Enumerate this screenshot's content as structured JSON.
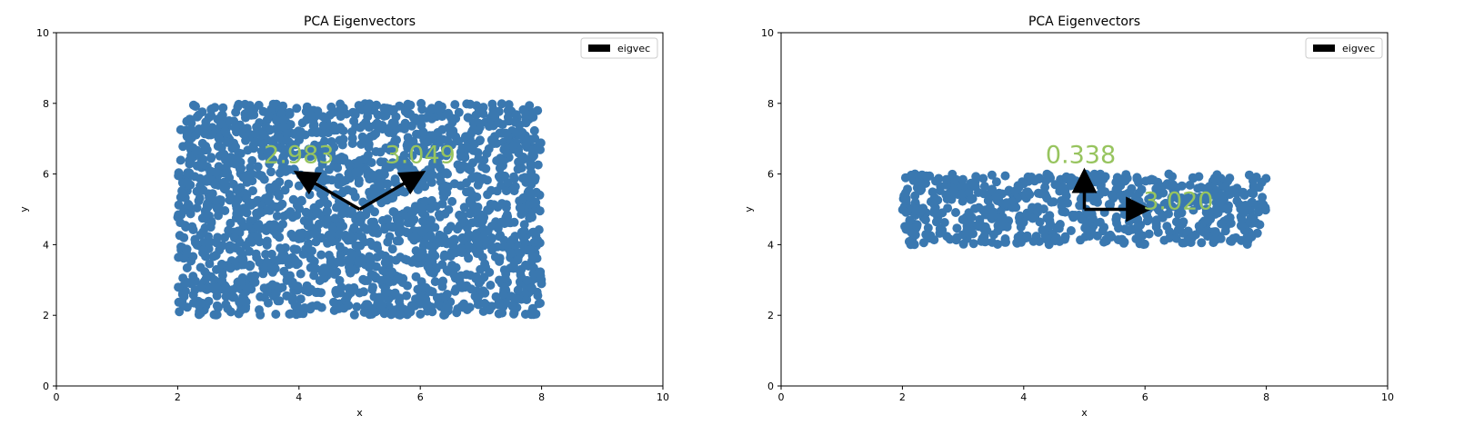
{
  "chart_data": [
    {
      "type": "scatter",
      "title": "PCA Eigenvectors",
      "xlabel": "x",
      "ylabel": "y",
      "xlim": [
        0,
        10
      ],
      "ylim": [
        0,
        10
      ],
      "xticks": [
        "0",
        "2",
        "4",
        "6",
        "8",
        "10"
      ],
      "yticks": [
        "0",
        "2",
        "4",
        "6",
        "8",
        "10"
      ],
      "grid": false,
      "legend": {
        "placement": "top-right",
        "entries": [
          "eigvec"
        ]
      },
      "scatter_region": {
        "x": [
          2,
          8
        ],
        "y": [
          2,
          8
        ],
        "color": "#3a78b0"
      },
      "eigenvectors": [
        {
          "origin": [
            5,
            5
          ],
          "end": [
            4,
            6
          ],
          "label": "2.983"
        },
        {
          "origin": [
            5,
            5
          ],
          "end": [
            6,
            6
          ],
          "label": "3.049"
        }
      ],
      "annotation_color": "#97c45e"
    },
    {
      "type": "scatter",
      "title": "PCA Eigenvectors",
      "xlabel": "x",
      "ylabel": "y",
      "xlim": [
        0,
        10
      ],
      "ylim": [
        0,
        10
      ],
      "xticks": [
        "0",
        "2",
        "4",
        "6",
        "8",
        "10"
      ],
      "yticks": [
        "0",
        "2",
        "4",
        "6",
        "8",
        "10"
      ],
      "grid": false,
      "legend": {
        "placement": "top-right",
        "entries": [
          "eigvec"
        ]
      },
      "scatter_region": {
        "x": [
          2,
          8
        ],
        "y": [
          4,
          6
        ],
        "color": "#3a78b0"
      },
      "eigenvectors": [
        {
          "origin": [
            5,
            5
          ],
          "end": [
            5,
            6
          ],
          "label": "0.338"
        },
        {
          "origin": [
            5,
            5
          ],
          "end": [
            6,
            5
          ],
          "label": "3.020"
        }
      ],
      "annotation_color": "#97c45e"
    }
  ]
}
